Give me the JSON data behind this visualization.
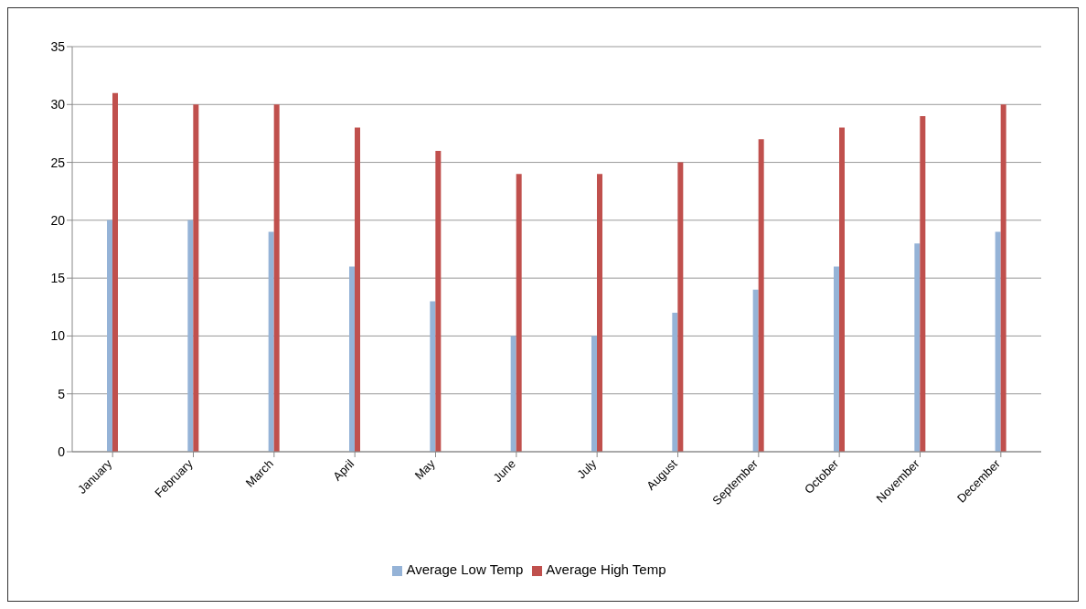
{
  "chart_data": {
    "type": "bar",
    "categories": [
      "January",
      "February",
      "March",
      "April",
      "May",
      "June",
      "July",
      "August",
      "September",
      "October",
      "November",
      "December"
    ],
    "series": [
      {
        "name": "Average Low Temp",
        "color": "#95b3d7",
        "values": [
          20,
          20,
          19,
          16,
          13,
          10,
          10,
          12,
          14,
          16,
          18,
          19
        ]
      },
      {
        "name": "Average High Temp",
        "color": "#c0504d",
        "values": [
          31,
          30,
          30,
          28,
          26,
          24,
          24,
          25,
          27,
          28,
          29,
          30
        ]
      }
    ],
    "ylim": [
      0,
      35
    ],
    "yticks": [
      0,
      5,
      10,
      15,
      20,
      25,
      30,
      35
    ],
    "grid": "y",
    "legend": "bottom"
  }
}
